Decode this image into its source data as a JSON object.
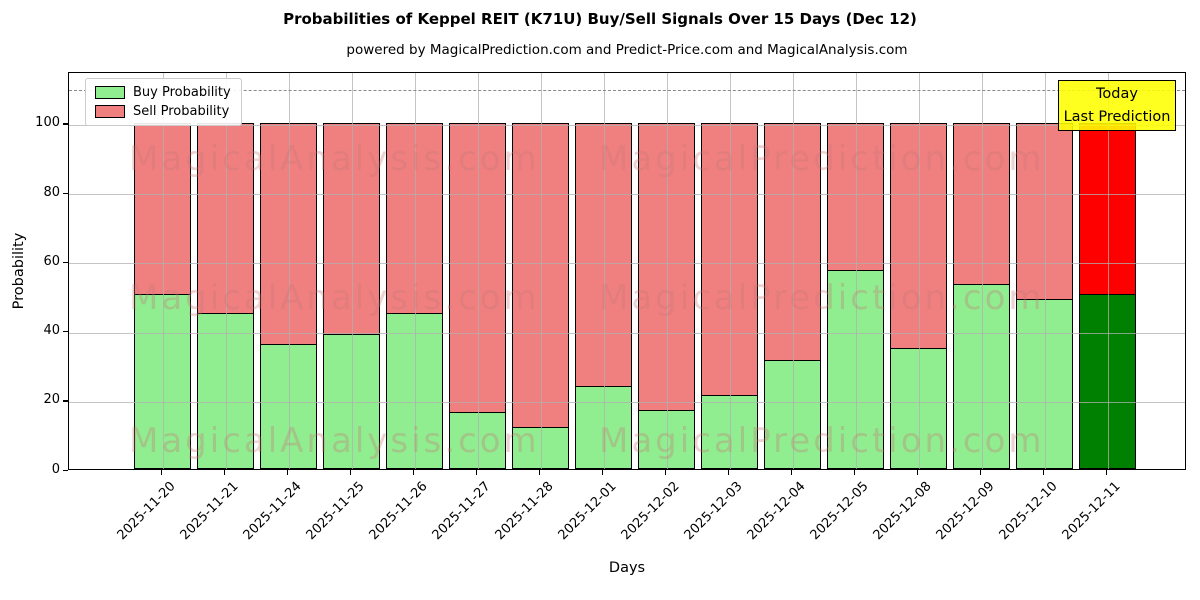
{
  "header": {
    "title": "Probabilities of Keppel REIT (K71U) Buy/Sell Signals Over 15 Days (Dec 12)",
    "subtitle": "powered by MagicalPrediction.com and Predict-Price.com and MagicalAnalysis.com"
  },
  "legend": {
    "items": [
      {
        "label": "Buy Probability",
        "color": "#90ee90"
      },
      {
        "label": "Sell Probability",
        "color": "#f08080"
      }
    ]
  },
  "annotation": {
    "line1": "Today",
    "line2": "Last Prediction",
    "bg_color": "#ffff00"
  },
  "axes": {
    "xlabel": "Days",
    "ylabel": "Probability",
    "yticks": [
      0,
      20,
      40,
      60,
      80,
      100
    ]
  },
  "watermarks": {
    "left_text": "MagicalAnalysis.com",
    "right_text": "MagicalPrediction.com"
  },
  "chart_data": {
    "type": "bar",
    "stacked": true,
    "title": "Probabilities of Keppel REIT (K71U) Buy/Sell Signals Over 15 Days (Dec 12)",
    "xlabel": "Days",
    "ylabel": "Probability",
    "ylim": [
      0,
      115
    ],
    "grid": true,
    "legend_position": "upper left",
    "dashed_hline_y": 110,
    "categories": [
      "2025-11-20",
      "2025-11-21",
      "2025-11-24",
      "2025-11-25",
      "2025-11-26",
      "2025-11-27",
      "2025-11-28",
      "2025-12-01",
      "2025-12-02",
      "2025-12-03",
      "2025-12-04",
      "2025-12-05",
      "2025-12-08",
      "2025-12-09",
      "2025-12-10",
      "2025-12-11"
    ],
    "series": [
      {
        "name": "Buy Probability",
        "color": "#90ee90",
        "last_bar_color": "#008000",
        "values": [
          50.5,
          45,
          36,
          39,
          45,
          16.5,
          12,
          24,
          17,
          21.5,
          31.5,
          57.5,
          35,
          53.5,
          49,
          50.5
        ]
      },
      {
        "name": "Sell Probability",
        "color": "#f08080",
        "last_bar_color": "#ff0000",
        "values": [
          49.5,
          55,
          64,
          61,
          55,
          83.5,
          88,
          76,
          83,
          78.5,
          68.5,
          42.5,
          65,
          46.5,
          51,
          49.5
        ]
      }
    ],
    "last_bar_highlighted": true
  }
}
